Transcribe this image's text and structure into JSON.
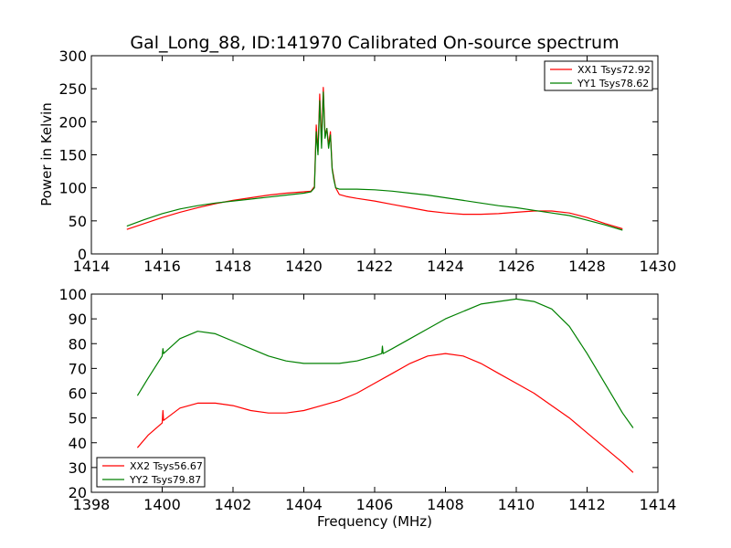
{
  "chart_data": [
    {
      "type": "line",
      "title": "Gal_Long_88, ID:141970 Calibrated On-source spectrum",
      "xlabel": "",
      "ylabel": "Power in Kelvin",
      "xlim": [
        1414,
        1430
      ],
      "ylim": [
        0,
        300
      ],
      "xticks": [
        1414,
        1416,
        1418,
        1420,
        1422,
        1424,
        1426,
        1428,
        1430
      ],
      "yticks": [
        0,
        50,
        100,
        150,
        200,
        250,
        300
      ],
      "legend_position": "top-right",
      "series": [
        {
          "name": "XX1 Tsys72.92",
          "color": "#ff0000",
          "x": [
            1415.0,
            1415.5,
            1416.0,
            1416.5,
            1417.0,
            1417.5,
            1418.0,
            1418.5,
            1419.0,
            1419.5,
            1420.0,
            1420.2,
            1420.3,
            1420.35,
            1420.4,
            1420.45,
            1420.5,
            1420.55,
            1420.6,
            1420.65,
            1420.7,
            1420.75,
            1420.8,
            1420.85,
            1420.9,
            1421.0,
            1421.2,
            1421.5,
            1422.0,
            1422.5,
            1423.0,
            1423.5,
            1424.0,
            1424.5,
            1425.0,
            1425.5,
            1426.0,
            1426.5,
            1427.0,
            1427.5,
            1428.0,
            1428.5,
            1429.0
          ],
          "values": [
            37,
            46,
            55,
            63,
            70,
            76,
            81,
            85,
            89,
            92,
            94,
            95,
            102,
            195,
            155,
            242,
            170,
            252,
            180,
            190,
            165,
            185,
            130,
            115,
            100,
            90,
            87,
            84,
            80,
            75,
            70,
            65,
            62,
            60,
            60,
            61,
            63,
            65,
            65,
            62,
            55,
            46,
            38
          ]
        },
        {
          "name": "YY1 Tsys78.62",
          "color": "#008000",
          "x": [
            1415.0,
            1415.5,
            1416.0,
            1416.5,
            1417.0,
            1417.5,
            1418.0,
            1418.5,
            1419.0,
            1419.5,
            1420.0,
            1420.2,
            1420.3,
            1420.35,
            1420.4,
            1420.45,
            1420.5,
            1420.55,
            1420.6,
            1420.65,
            1420.7,
            1420.75,
            1420.8,
            1420.85,
            1420.9,
            1421.0,
            1421.2,
            1421.5,
            1422.0,
            1422.5,
            1423.0,
            1423.5,
            1424.0,
            1424.5,
            1425.0,
            1425.5,
            1426.0,
            1426.5,
            1427.0,
            1427.5,
            1428.0,
            1428.5,
            1429.0
          ],
          "values": [
            42,
            52,
            61,
            68,
            73,
            77,
            80,
            83,
            86,
            89,
            92,
            94,
            100,
            185,
            150,
            232,
            160,
            245,
            175,
            190,
            160,
            180,
            128,
            112,
            100,
            98,
            98,
            98,
            97,
            95,
            92,
            89,
            85,
            81,
            77,
            73,
            70,
            66,
            62,
            58,
            51,
            44,
            36
          ]
        }
      ]
    },
    {
      "type": "line",
      "title": "",
      "xlabel": "Frequency (MHz)",
      "ylabel": "",
      "xlim": [
        1398,
        1414
      ],
      "ylim": [
        20,
        100
      ],
      "xticks": [
        1398,
        1400,
        1402,
        1404,
        1406,
        1408,
        1410,
        1412,
        1414
      ],
      "yticks": [
        20,
        30,
        40,
        50,
        60,
        70,
        80,
        90,
        100
      ],
      "legend_position": "bottom-left",
      "series": [
        {
          "name": "XX2 Tsys56.67",
          "color": "#ff0000",
          "x": [
            1399.3,
            1399.6,
            1400.0,
            1400.02,
            1400.04,
            1400.5,
            1401.0,
            1401.5,
            1402.0,
            1402.5,
            1403.0,
            1403.5,
            1404.0,
            1404.5,
            1405.0,
            1405.5,
            1406.0,
            1406.5,
            1407.0,
            1407.5,
            1408.0,
            1408.5,
            1409.0,
            1409.5,
            1410.0,
            1410.5,
            1411.0,
            1411.5,
            1412.0,
            1412.5,
            1413.0,
            1413.3
          ],
          "values": [
            38,
            43,
            48,
            53,
            49,
            54,
            56,
            56,
            55,
            53,
            52,
            52,
            53,
            55,
            57,
            60,
            64,
            68,
            72,
            75,
            76,
            75,
            72,
            68,
            64,
            60,
            55,
            50,
            44,
            38,
            32,
            28
          ]
        },
        {
          "name": "YY2 Tsys79.87",
          "color": "#008000",
          "x": [
            1399.3,
            1399.6,
            1400.0,
            1400.02,
            1400.04,
            1400.5,
            1401.0,
            1401.5,
            1402.0,
            1402.5,
            1403.0,
            1403.5,
            1404.0,
            1404.5,
            1405.0,
            1405.5,
            1406.0,
            1406.2,
            1406.22,
            1406.24,
            1406.5,
            1407.0,
            1407.5,
            1408.0,
            1408.5,
            1409.0,
            1409.5,
            1410.0,
            1410.5,
            1411.0,
            1411.5,
            1412.0,
            1412.5,
            1413.0,
            1413.3
          ],
          "values": [
            59,
            66,
            75,
            78,
            76,
            82,
            85,
            84,
            81,
            78,
            75,
            73,
            72,
            72,
            72,
            73,
            75,
            76,
            79,
            76,
            78,
            82,
            86,
            90,
            93,
            96,
            97,
            98,
            97,
            94,
            87,
            76,
            64,
            52,
            46
          ]
        }
      ]
    }
  ]
}
